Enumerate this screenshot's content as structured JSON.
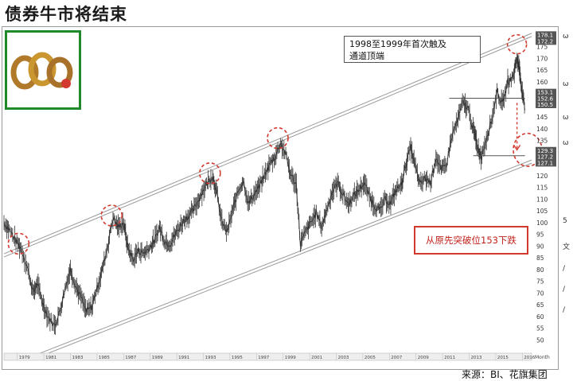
{
  "title": "债券牛市将结束",
  "annotations": {
    "note1_line1": "1998至1999年首次触及",
    "note1_line2": "通道顶端",
    "note2": "从原先突破位153下跌"
  },
  "source": "来源：BI、花旗集团",
  "x_label": "Month",
  "colors": {
    "price": "#333333",
    "channel": "#9a9a9a",
    "circle": "#d23a2f",
    "logo_border": "#1f8a2a",
    "note_red": "#c0211a"
  },
  "price_labels": [
    "178.1",
    "172.2",
    "153.1",
    "152.6",
    "150.5",
    "129.3",
    "127.2",
    "127.1"
  ],
  "right_strip": [
    "ω",
    "ω",
    "ω",
    "ω",
    "5",
    "文",
    "/",
    "/",
    "/"
  ],
  "chart_data": {
    "type": "line",
    "title": "",
    "xlabel": "Month",
    "ylabel": "",
    "ylim": [
      45,
      182
    ],
    "y_ticks": [
      50,
      55,
      60,
      65,
      70,
      75,
      80,
      85,
      90,
      95,
      100,
      105,
      110,
      115,
      120,
      125,
      130,
      135,
      140,
      145,
      150,
      155,
      160,
      165,
      170,
      175
    ],
    "x_ticks": [
      "1979",
      "1981",
      "1983",
      "1985",
      "1987",
      "1989",
      "1991",
      "1993",
      "1995",
      "1997",
      "1999",
      "2001",
      "2003",
      "2005",
      "2007",
      "2009",
      "2011",
      "2013",
      "2015",
      "2016"
    ],
    "series": [
      {
        "values": [
          [
            1978.0,
            100
          ],
          [
            1978.4,
            97
          ],
          [
            1978.9,
            92
          ],
          [
            1979.3,
            89
          ],
          [
            1979.8,
            80
          ],
          [
            1980.2,
            70
          ],
          [
            1980.5,
            74
          ],
          [
            1980.9,
            66
          ],
          [
            1981.3,
            60
          ],
          [
            1981.8,
            56
          ],
          [
            1982.2,
            62
          ],
          [
            1982.6,
            72
          ],
          [
            1983.0,
            80
          ],
          [
            1983.4,
            73
          ],
          [
            1983.8,
            68
          ],
          [
            1984.2,
            62
          ],
          [
            1984.6,
            64
          ],
          [
            1985.0,
            72
          ],
          [
            1985.4,
            80
          ],
          [
            1985.8,
            90
          ],
          [
            1986.2,
            102
          ],
          [
            1986.6,
            98
          ],
          [
            1987.0,
            100
          ],
          [
            1987.3,
            90
          ],
          [
            1987.7,
            84
          ],
          [
            1988.1,
            88
          ],
          [
            1988.5,
            87
          ],
          [
            1988.9,
            89
          ],
          [
            1989.3,
            92
          ],
          [
            1989.7,
            98
          ],
          [
            1990.1,
            92
          ],
          [
            1990.5,
            91
          ],
          [
            1990.9,
            95
          ],
          [
            1991.3,
            99
          ],
          [
            1991.7,
            102
          ],
          [
            1992.1,
            104
          ],
          [
            1992.5,
            108
          ],
          [
            1992.9,
            113
          ],
          [
            1993.3,
            117
          ],
          [
            1993.7,
            120
          ],
          [
            1994.0,
            113
          ],
          [
            1994.4,
            100
          ],
          [
            1994.8,
            96
          ],
          [
            1995.2,
            105
          ],
          [
            1995.6,
            113
          ],
          [
            1996.0,
            118
          ],
          [
            1996.4,
            108
          ],
          [
            1996.8,
            112
          ],
          [
            1997.2,
            115
          ],
          [
            1997.6,
            120
          ],
          [
            1998.0,
            125
          ],
          [
            1998.4,
            128
          ],
          [
            1998.8,
            134
          ],
          [
            1999.2,
            129
          ],
          [
            1999.6,
            120
          ],
          [
            2000.0,
            116
          ],
          [
            2000.3,
            91
          ],
          [
            2000.7,
            96
          ],
          [
            2001.1,
            100
          ],
          [
            2001.5,
            104
          ],
          [
            2001.9,
            98
          ],
          [
            2002.3,
            106
          ],
          [
            2002.7,
            113
          ],
          [
            2003.1,
            117
          ],
          [
            2003.5,
            112
          ],
          [
            2003.9,
            108
          ],
          [
            2004.3,
            111
          ],
          [
            2004.7,
            114
          ],
          [
            2005.1,
            117
          ],
          [
            2005.5,
            111
          ],
          [
            2005.9,
            107
          ],
          [
            2006.3,
            105
          ],
          [
            2006.7,
            110
          ],
          [
            2007.1,
            108
          ],
          [
            2007.5,
            114
          ],
          [
            2007.9,
            116
          ],
          [
            2008.2,
            124
          ],
          [
            2008.6,
            132
          ],
          [
            2008.9,
            125
          ],
          [
            2009.3,
            116
          ],
          [
            2009.7,
            119
          ],
          [
            2010.1,
            117
          ],
          [
            2010.5,
            128
          ],
          [
            2010.9,
            122
          ],
          [
            2011.3,
            125
          ],
          [
            2011.7,
            137
          ],
          [
            2012.1,
            143
          ],
          [
            2012.5,
            151
          ],
          [
            2012.9,
            149
          ],
          [
            2013.3,
            140
          ],
          [
            2013.6,
            133
          ],
          [
            2013.9,
            128
          ],
          [
            2014.3,
            136
          ],
          [
            2014.7,
            144
          ],
          [
            2015.1,
            156
          ],
          [
            2015.5,
            150
          ],
          [
            2015.9,
            160
          ],
          [
            2016.3,
            162
          ],
          [
            2016.6,
            170
          ],
          [
            2016.8,
            165
          ],
          [
            2017.0,
            155
          ],
          [
            2017.2,
            148
          ]
        ]
      }
    ],
    "channel_upper": [
      [
        1978.0,
        86
      ],
      [
        2017.7,
        180
      ]
    ],
    "channel_lower": [
      [
        1980.0,
        42
      ],
      [
        2017.7,
        126
      ]
    ],
    "grid": false,
    "legend": "none"
  }
}
